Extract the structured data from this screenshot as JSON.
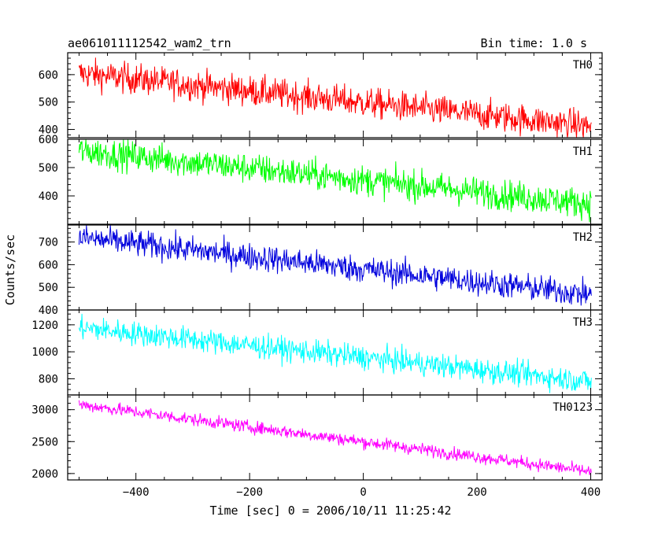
{
  "chart_data": {
    "type": "line",
    "title_left": "ae061011112542_wam2_trn",
    "title_right": "Bin time: 1.0 s",
    "xlabel": "Time [sec] 0 = 2006/10/11 11:25:42",
    "ylabel": "Counts/sec",
    "xlim": [
      -520,
      420
    ],
    "x_ticks": [
      -400,
      -200,
      0,
      200,
      400
    ],
    "x_range": [
      -500,
      401
    ],
    "bin_time": 1.0,
    "grid": false,
    "panels": [
      {
        "name": "TH0",
        "color": "#ff0000",
        "ylim": [
          370,
          680
        ],
        "y_ticks": [
          400,
          500,
          600
        ],
        "y_tick_labels": [
          "400",
          "500",
          "600"
        ],
        "start": 605,
        "end": 412,
        "noise": 28
      },
      {
        "name": "TH1",
        "color": "#00ff00",
        "ylim": [
          300,
          600
        ],
        "y_ticks": [
          400,
          500,
          600
        ],
        "y_tick_labels": [
          "400",
          "500",
          "600"
        ],
        "start": 560,
        "end": 372,
        "noise": 27
      },
      {
        "name": "TH2",
        "color": "#0000dd",
        "ylim": [
          400,
          775
        ],
        "y_ticks": [
          400,
          500,
          600,
          700
        ],
        "y_tick_labels": [
          "400",
          "500",
          "600",
          "700"
        ],
        "start": 720,
        "end": 468,
        "noise": 30
      },
      {
        "name": "TH3",
        "color": "#00ffff",
        "ylim": [
          680,
          1310
        ],
        "y_ticks": [
          800,
          1000,
          1200
        ],
        "y_tick_labels": [
          "800",
          "1000",
          "1200"
        ],
        "start": 1180,
        "end": 780,
        "noise": 45
      },
      {
        "name": "TH0123",
        "color": "#ff00ff",
        "ylim": [
          1900,
          3230
        ],
        "y_ticks": [
          2000,
          2500,
          3000
        ],
        "y_tick_labels": [
          "2000",
          "2500",
          "3000"
        ],
        "start": 3080,
        "end": 2030,
        "noise": 50
      }
    ]
  }
}
